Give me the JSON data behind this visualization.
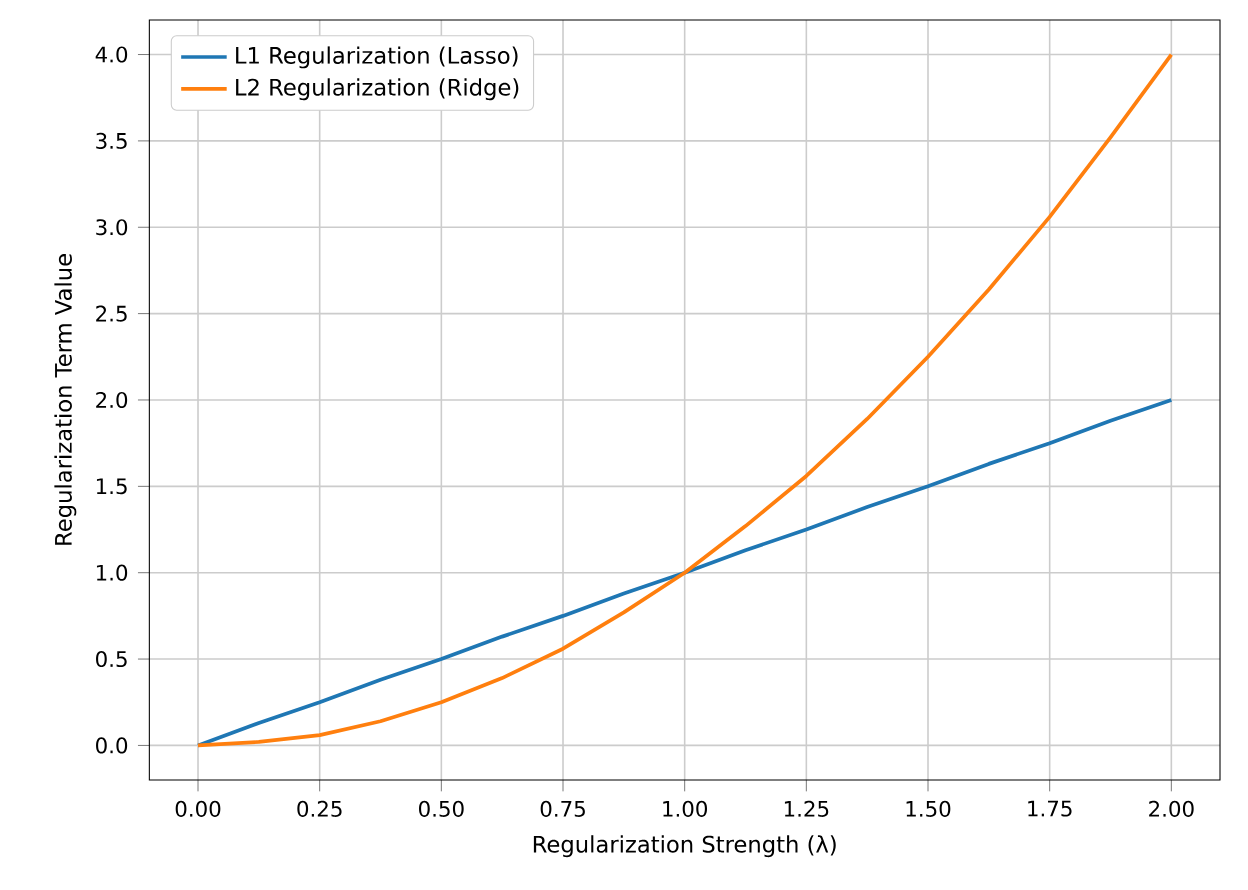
{
  "chart_data": {
    "type": "line",
    "xlabel": "Regularization Strength (λ)",
    "ylabel": "Regularization Term Value",
    "x": [
      0,
      0.125,
      0.25,
      0.375,
      0.5,
      0.625,
      0.75,
      0.875,
      1,
      1.125,
      1.25,
      1.375,
      1.5,
      1.625,
      1.75,
      1.875,
      2
    ],
    "series": [
      {
        "name": "L1 Regularization (Lasso)",
        "color": "#1f77b4",
        "values": [
          0,
          0.13,
          0.25,
          0.38,
          0.5,
          0.63,
          0.75,
          0.88,
          1,
          1.13,
          1.25,
          1.38,
          1.5,
          1.63,
          1.75,
          1.88,
          2
        ]
      },
      {
        "name": "L2 Regularization (Ridge)",
        "color": "#ff7f0e",
        "values": [
          0,
          0.02,
          0.06,
          0.14,
          0.25,
          0.39,
          0.56,
          0.77,
          1,
          1.27,
          1.56,
          1.89,
          2.25,
          2.64,
          3.06,
          3.52,
          4
        ]
      }
    ],
    "xlim": [
      -0.1,
      2.1
    ],
    "ylim": [
      -0.2,
      4.2
    ],
    "xticks": [
      {
        "value": 0,
        "label": "0.00"
      },
      {
        "value": 0.25,
        "label": "0.25"
      },
      {
        "value": 0.5,
        "label": "0.50"
      },
      {
        "value": 0.75,
        "label": "0.75"
      },
      {
        "value": 1,
        "label": "1.00"
      },
      {
        "value": 1.25,
        "label": "1.25"
      },
      {
        "value": 1.5,
        "label": "1.50"
      },
      {
        "value": 1.75,
        "label": "1.75"
      },
      {
        "value": 2,
        "label": "2.00"
      }
    ],
    "yticks": [
      {
        "value": 0,
        "label": "0.0"
      },
      {
        "value": 0.5,
        "label": "0.5"
      },
      {
        "value": 1,
        "label": "1.0"
      },
      {
        "value": 1.5,
        "label": "1.5"
      },
      {
        "value": 2,
        "label": "2.0"
      },
      {
        "value": 2.5,
        "label": "2.5"
      },
      {
        "value": 3,
        "label": "3.0"
      },
      {
        "value": 3.5,
        "label": "3.5"
      },
      {
        "value": 4,
        "label": "4.0"
      }
    ],
    "grid": true,
    "legend": "top left",
    "marker": "none",
    "line_style": "solid"
  }
}
